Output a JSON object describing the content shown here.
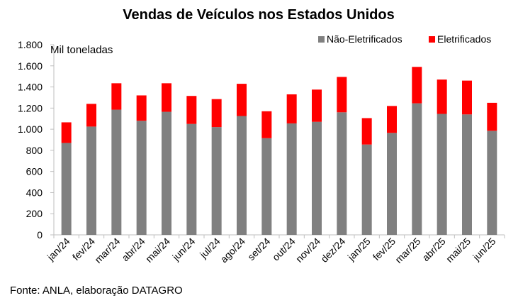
{
  "chart_data": {
    "type": "bar",
    "stacked": true,
    "title": "Vendas de Veículos nos Estados Unidos",
    "unit_label": "Mil toneladas",
    "source": "Fonte: ANLA, elaboração DATAGRO",
    "categories": [
      "jan/24",
      "fev/24",
      "mar/24",
      "abr/24",
      "mai/24",
      "jun/24",
      "jul/24",
      "ago/24",
      "set/24",
      "out/24",
      "nov/24",
      "dez/24",
      "jan/25",
      "fev/25",
      "mar/25",
      "abr/25",
      "mai/25",
      "jun/25"
    ],
    "series": [
      {
        "name": "Não-Eletrificados",
        "color": "#808080",
        "values": [
          870,
          1025,
          1185,
          1080,
          1165,
          1050,
          1020,
          1125,
          915,
          1055,
          1070,
          1160,
          855,
          965,
          1245,
          1145,
          1140,
          985
        ]
      },
      {
        "name": "Eletrificados",
        "color": "#ff0000",
        "values": [
          195,
          215,
          250,
          240,
          270,
          265,
          265,
          305,
          255,
          275,
          305,
          335,
          250,
          255,
          345,
          325,
          320,
          265
        ]
      }
    ],
    "ylim": [
      0,
      1800
    ],
    "yticks": [
      0,
      200,
      400,
      600,
      800,
      1000,
      1200,
      1400,
      1600,
      1800
    ],
    "ytick_labels": [
      "0",
      "200",
      "400",
      "600",
      "800",
      "1.000",
      "1.200",
      "1.400",
      "1.600",
      "1.800"
    ],
    "legend_position": "top-right",
    "grid": false
  }
}
